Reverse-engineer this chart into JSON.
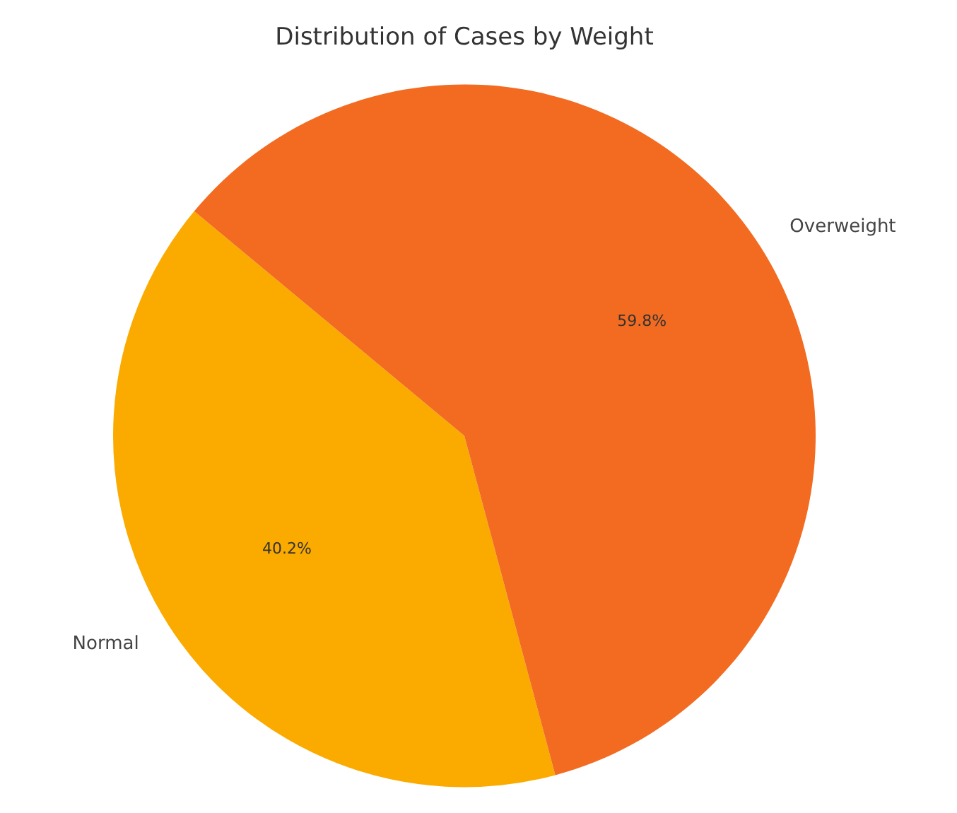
{
  "chart_data": {
    "type": "pie",
    "title": "Distribution of Cases by Weight",
    "categories": [
      "Normal",
      "Overweight"
    ],
    "values": [
      40.2,
      59.8
    ],
    "colors": [
      "#fbab00",
      "#f26b21"
    ],
    "value_labels": [
      "40.2%",
      "59.8%"
    ],
    "legend": false
  }
}
